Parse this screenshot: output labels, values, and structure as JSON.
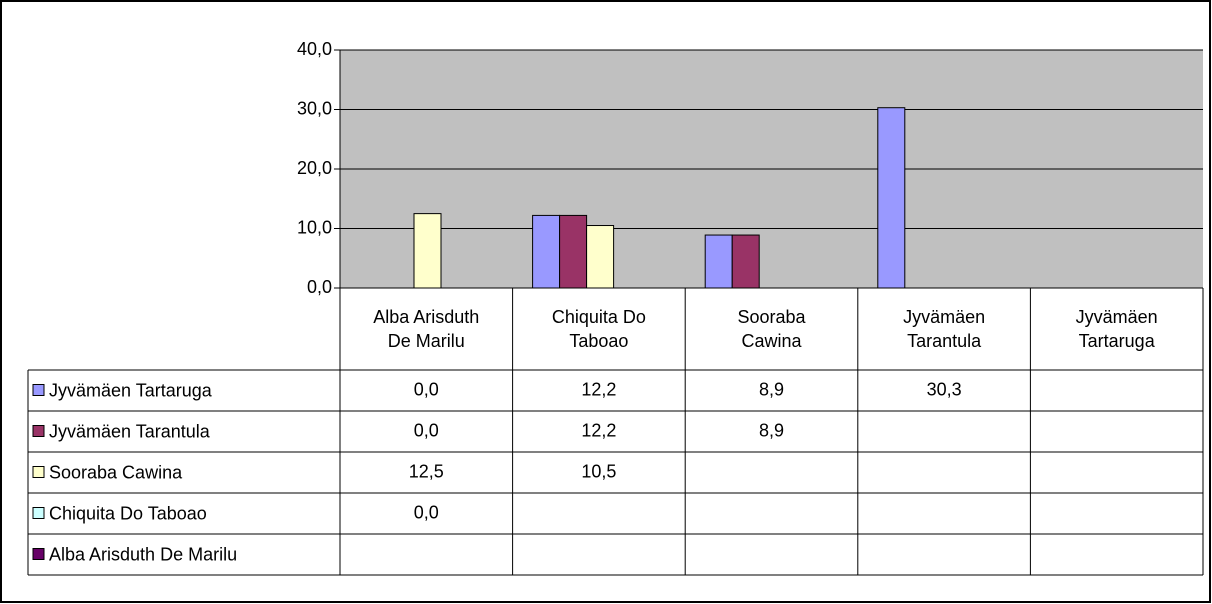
{
  "chart_data": {
    "type": "bar",
    "categories": [
      "Alba Arisduth De Marilu",
      "Chiquita Do Taboao",
      "Sooraba Cawina",
      "Jyvämäen Tarantula",
      "Jyvämäen Tartaruga"
    ],
    "series": [
      {
        "name": "Jyvämäen Tartaruga",
        "color": "#9999ff",
        "values": [
          0,
          12.2,
          8.9,
          30.3,
          null
        ],
        "value_labels": [
          "0,0",
          "12,2",
          "8,9",
          "30,3",
          null
        ]
      },
      {
        "name": "Jyvämäen Tarantula",
        "color": "#993366",
        "values": [
          0,
          12.2,
          8.9,
          null,
          null
        ],
        "value_labels": [
          "0,0",
          "12,2",
          "8,9",
          null,
          null
        ]
      },
      {
        "name": "Sooraba Cawina",
        "color": "#ffffcc",
        "values": [
          12.5,
          10.5,
          null,
          null,
          null
        ],
        "value_labels": [
          "12,5",
          "10,5",
          null,
          null,
          null
        ]
      },
      {
        "name": "Chiquita Do Taboao",
        "color": "#ccffff",
        "values": [
          0,
          null,
          null,
          null,
          null
        ],
        "value_labels": [
          "0,0",
          null,
          null,
          null,
          null
        ]
      },
      {
        "name": "Alba Arisduth De Marilu",
        "color": "#660066",
        "values": [
          null,
          null,
          null,
          null,
          null
        ],
        "value_labels": [
          null,
          null,
          null,
          null,
          null
        ]
      }
    ],
    "ylim": [
      0,
      40
    ],
    "yticks": [
      {
        "value": 0,
        "label": "0,0"
      },
      {
        "value": 10,
        "label": "10,0"
      },
      {
        "value": 20,
        "label": "20,0"
      },
      {
        "value": 30,
        "label": "30,0"
      },
      {
        "value": 40,
        "label": "40,0"
      }
    ],
    "grid": true,
    "plot_background": "#c0c0c0",
    "data_table": true
  }
}
